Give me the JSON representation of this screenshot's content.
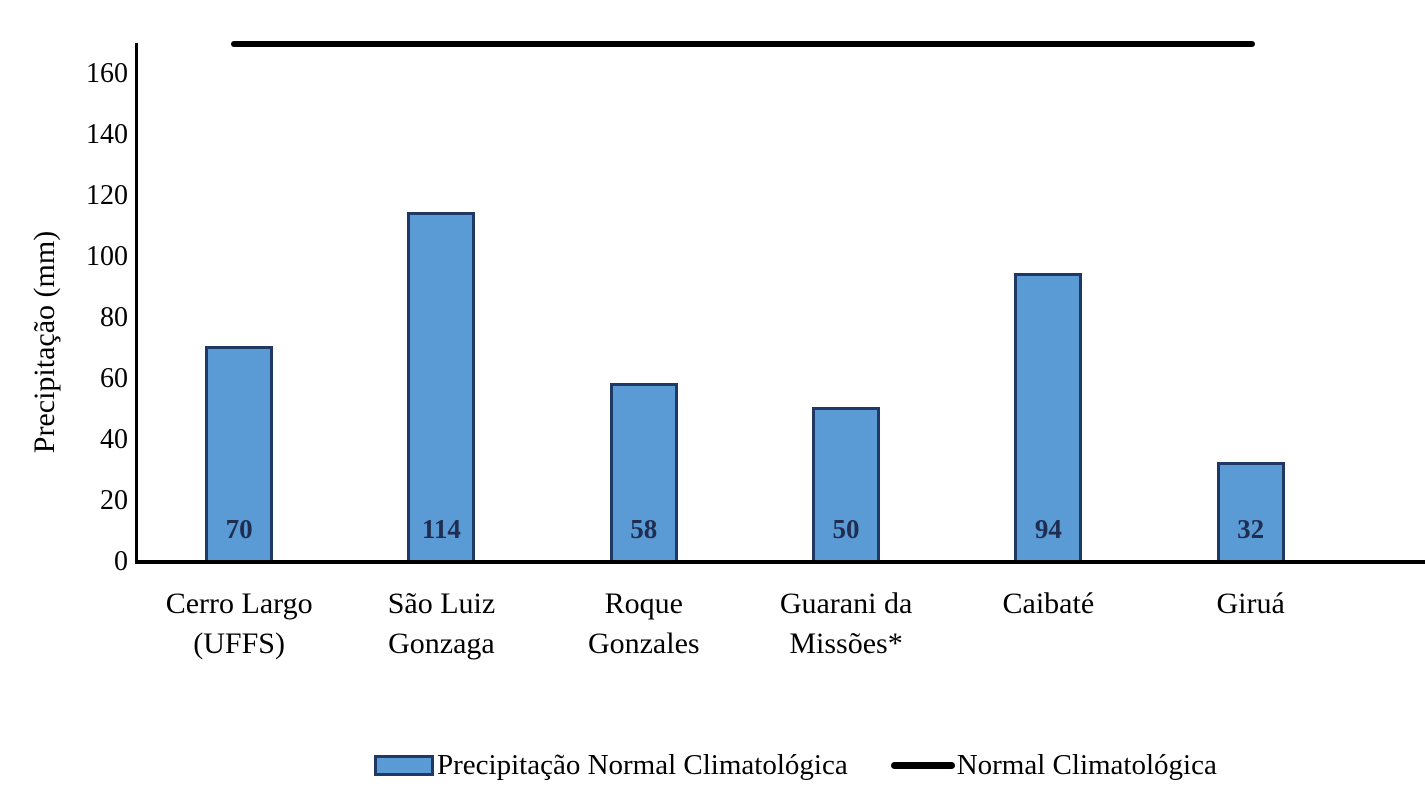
{
  "chart_data": {
    "type": "bar",
    "title": "",
    "xlabel": "",
    "ylabel": "Precipitação (mm)",
    "categories": [
      "Cerro Largo (UFFS)",
      "São Luiz Gonzaga",
      "Roque Gonzales",
      "Guarani da Missões*",
      "Caibaté",
      "Giruá"
    ],
    "category_display_lines": [
      [
        "Cerro Largo",
        "(UFFS)"
      ],
      [
        "São Luiz",
        "Gonzaga"
      ],
      [
        "Roque",
        "Gonzales"
      ],
      [
        "Guarani da",
        "Missões*"
      ],
      [
        "Caibaté"
      ],
      [
        "Giruá"
      ]
    ],
    "series": [
      {
        "name": "Precipitação Normal Climatológica",
        "kind": "bar",
        "values": [
          70,
          114,
          58,
          50,
          94,
          32
        ]
      },
      {
        "name": "Normal Climatológica",
        "kind": "line",
        "level": 170
      }
    ],
    "data_labels": [
      "70",
      "114",
      "58",
      "50",
      "94",
      "32"
    ],
    "y_ticks": [
      0,
      20,
      40,
      60,
      80,
      100,
      120,
      140,
      160
    ],
    "ylim": [
      0,
      170
    ],
    "grid": false,
    "legend_position": "bottom",
    "colors": {
      "bar_fill": "#5b9bd5",
      "bar_border": "#1f3864",
      "value_label": "#1f2d50",
      "line": "#000000",
      "axis": "#000000",
      "text": "#000000"
    }
  },
  "legend": {
    "items": [
      {
        "swatch": "bar",
        "label": "Precipitação Normal Climatológica"
      },
      {
        "swatch": "line",
        "label": "Normal Climatológica"
      }
    ]
  }
}
